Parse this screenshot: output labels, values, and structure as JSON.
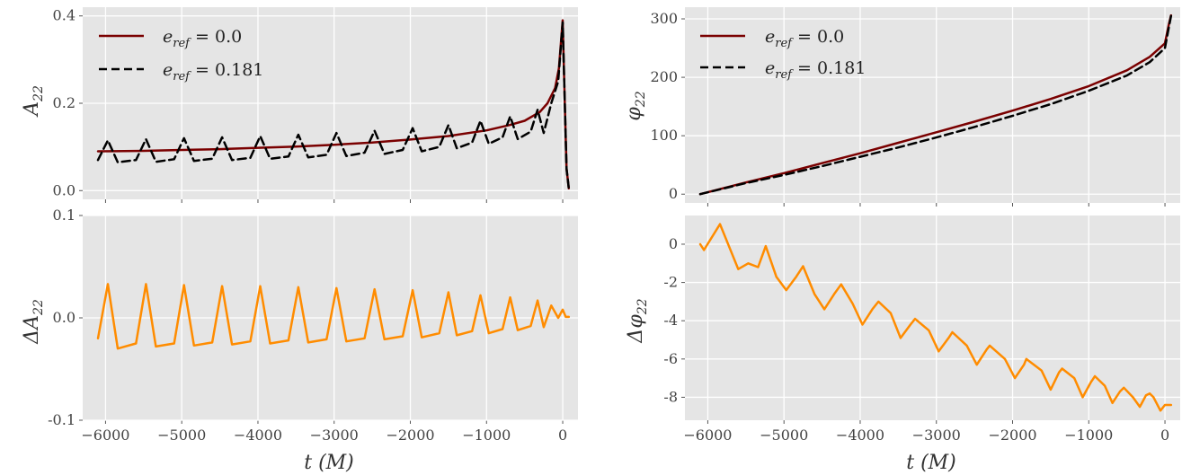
{
  "chart_data": [
    {
      "type": "line",
      "panel": "top-left",
      "ylabel": "A22",
      "xlim": [
        -6300,
        200
      ],
      "ylim": [
        -0.02,
        0.42
      ],
      "xticks": [
        -6000,
        -5000,
        -4000,
        -3000,
        -2000,
        -1000,
        0
      ],
      "xtick_labels": [
        "−6000",
        "−5000",
        "−4000",
        "−3000",
        "−2000",
        "−1000",
        "0"
      ],
      "show_xtick_labels": false,
      "yticks": [
        0.0,
        0.2,
        0.4
      ],
      "ytick_labels": [
        "0.0",
        "0.2",
        "0.4"
      ],
      "grid": true,
      "legend": "top-left",
      "series": [
        {
          "name": "e_ref = 0.0",
          "color": "#7a0000",
          "dash": "solid",
          "x": [
            -6100,
            -5500,
            -5000,
            -4500,
            -4000,
            -3500,
            -3000,
            -2500,
            -2000,
            -1500,
            -1000,
            -700,
            -500,
            -300,
            -200,
            -100,
            -50,
            0,
            20,
            50,
            80
          ],
          "y": [
            0.09,
            0.091,
            0.093,
            0.095,
            0.098,
            0.101,
            0.105,
            0.11,
            0.117,
            0.125,
            0.138,
            0.15,
            0.16,
            0.18,
            0.2,
            0.235,
            0.28,
            0.39,
            0.25,
            0.05,
            0.005
          ]
        },
        {
          "name": "e_ref = 0.181",
          "color": "#000000",
          "dash": "dashed",
          "x": [
            -6100,
            -5970,
            -5840,
            -5600,
            -5470,
            -5340,
            -5100,
            -4970,
            -4840,
            -4600,
            -4470,
            -4340,
            -4100,
            -3970,
            -3840,
            -3600,
            -3470,
            -3340,
            -3100,
            -2970,
            -2840,
            -2600,
            -2470,
            -2340,
            -2100,
            -1970,
            -1850,
            -1620,
            -1500,
            -1390,
            -1190,
            -1080,
            -970,
            -790,
            -690,
            -590,
            -420,
            -330,
            -250,
            -150,
            -60,
            0,
            20,
            50,
            80
          ],
          "y": [
            0.07,
            0.115,
            0.065,
            0.07,
            0.118,
            0.066,
            0.072,
            0.12,
            0.068,
            0.073,
            0.122,
            0.07,
            0.075,
            0.125,
            0.073,
            0.078,
            0.128,
            0.076,
            0.082,
            0.132,
            0.079,
            0.087,
            0.137,
            0.084,
            0.093,
            0.143,
            0.09,
            0.1,
            0.15,
            0.097,
            0.11,
            0.16,
            0.107,
            0.122,
            0.17,
            0.118,
            0.135,
            0.185,
            0.132,
            0.2,
            0.25,
            0.385,
            0.25,
            0.05,
            0.005
          ]
        }
      ]
    },
    {
      "type": "line",
      "panel": "top-right",
      "ylabel": "φ22",
      "xlim": [
        -6300,
        200
      ],
      "ylim": [
        -15,
        320
      ],
      "xticks": [
        -6000,
        -5000,
        -4000,
        -3000,
        -2000,
        -1000,
        0
      ],
      "xtick_labels": [
        "−6000",
        "−5000",
        "−4000",
        "−3000",
        "−2000",
        "−1000",
        "0"
      ],
      "show_xtick_labels": false,
      "yticks": [
        0,
        100,
        200,
        300
      ],
      "ytick_labels": [
        "0",
        "100",
        "200",
        "300"
      ],
      "grid": true,
      "legend": "top-left",
      "series": [
        {
          "name": "e_ref = 0.0",
          "color": "#7a0000",
          "dash": "solid",
          "x": [
            -6100,
            -5500,
            -5000,
            -4500,
            -4000,
            -3500,
            -3000,
            -2500,
            -2000,
            -1500,
            -1000,
            -500,
            -200,
            0,
            50,
            80
          ],
          "y": [
            0,
            20,
            36,
            53,
            70,
            88,
            106,
            124,
            143,
            163,
            185,
            212,
            235,
            258,
            290,
            306
          ]
        },
        {
          "name": "e_ref = 0.181",
          "color": "#000000",
          "dash": "dashed",
          "x": [
            -6100,
            -5500,
            -5000,
            -4500,
            -4000,
            -3500,
            -3000,
            -2500,
            -2000,
            -1500,
            -1000,
            -500,
            -200,
            0,
            50,
            80
          ],
          "y": [
            0,
            19,
            33,
            48,
            64,
            80,
            97,
            115,
            134,
            154,
            177,
            203,
            226,
            250,
            285,
            305
          ]
        }
      ]
    },
    {
      "type": "line",
      "panel": "bottom-left",
      "xlabel": "t (M)",
      "ylabel": "ΔA22",
      "xlim": [
        -6300,
        200
      ],
      "ylim": [
        -0.1,
        0.1
      ],
      "xticks": [
        -6000,
        -5000,
        -4000,
        -3000,
        -2000,
        -1000,
        0
      ],
      "xtick_labels": [
        "−6000",
        "−5000",
        "−4000",
        "−3000",
        "−2000",
        "−1000",
        "0"
      ],
      "show_xtick_labels": true,
      "yticks": [
        -0.1,
        0.0,
        0.1
      ],
      "ytick_labels": [
        "-0.1",
        "0.0",
        "0.1"
      ],
      "grid": true,
      "series": [
        {
          "color": "#ff8c00",
          "dash": "solid",
          "x": [
            -6100,
            -5970,
            -5840,
            -5600,
            -5470,
            -5340,
            -5100,
            -4970,
            -4840,
            -4600,
            -4470,
            -4340,
            -4100,
            -3970,
            -3840,
            -3600,
            -3470,
            -3340,
            -3100,
            -2970,
            -2840,
            -2600,
            -2470,
            -2340,
            -2100,
            -1970,
            -1850,
            -1620,
            -1500,
            -1390,
            -1190,
            -1080,
            -970,
            -790,
            -690,
            -590,
            -420,
            -330,
            -250,
            -150,
            -60,
            0,
            40,
            80
          ],
          "y": [
            -0.02,
            0.033,
            -0.03,
            -0.025,
            0.033,
            -0.028,
            -0.025,
            0.032,
            -0.027,
            -0.024,
            0.031,
            -0.026,
            -0.023,
            0.031,
            -0.025,
            -0.022,
            0.03,
            -0.024,
            -0.021,
            0.029,
            -0.023,
            -0.02,
            0.028,
            -0.021,
            -0.018,
            0.027,
            -0.019,
            -0.015,
            0.025,
            -0.017,
            -0.013,
            0.022,
            -0.015,
            -0.011,
            0.02,
            -0.012,
            -0.008,
            0.017,
            -0.009,
            0.012,
            0.0,
            0.008,
            0.001,
            0.001
          ]
        }
      ]
    },
    {
      "type": "line",
      "panel": "bottom-right",
      "xlabel": "t (M)",
      "ylabel": "Δφ22",
      "xlim": [
        -6300,
        200
      ],
      "ylim": [
        -9.2,
        1.5
      ],
      "xticks": [
        -6000,
        -5000,
        -4000,
        -3000,
        -2000,
        -1000,
        0
      ],
      "xtick_labels": [
        "−6000",
        "−5000",
        "−4000",
        "−3000",
        "−2000",
        "−1000",
        "0"
      ],
      "show_xtick_labels": true,
      "yticks": [
        0,
        -2,
        -4,
        -6,
        -8
      ],
      "ytick_labels": [
        "0",
        "-2",
        "-4",
        "-6",
        "-8"
      ],
      "grid": true,
      "series": [
        {
          "color": "#ff8c00",
          "dash": "solid",
          "x": [
            -6100,
            -6050,
            -5840,
            -5600,
            -5470,
            -5340,
            -5240,
            -5100,
            -4970,
            -4840,
            -4750,
            -4600,
            -4470,
            -4340,
            -4250,
            -4100,
            -3970,
            -3840,
            -3760,
            -3600,
            -3470,
            -3340,
            -3280,
            -3100,
            -2970,
            -2840,
            -2790,
            -2600,
            -2470,
            -2340,
            -2300,
            -2100,
            -1970,
            -1850,
            -1820,
            -1620,
            -1500,
            -1390,
            -1350,
            -1190,
            -1080,
            -970,
            -920,
            -790,
            -690,
            -590,
            -540,
            -420,
            -330,
            -250,
            -200,
            -150,
            -60,
            0,
            40,
            80
          ],
          "y": [
            0.0,
            -0.3,
            1.05,
            -1.3,
            -1.0,
            -1.2,
            -0.1,
            -1.7,
            -2.4,
            -1.7,
            -1.15,
            -2.6,
            -3.4,
            -2.6,
            -2.1,
            -3.1,
            -4.2,
            -3.4,
            -3.0,
            -3.6,
            -4.9,
            -4.2,
            -3.9,
            -4.5,
            -5.6,
            -4.9,
            -4.6,
            -5.3,
            -6.3,
            -5.5,
            -5.3,
            -6.0,
            -7.0,
            -6.3,
            -6.0,
            -6.6,
            -7.6,
            -6.7,
            -6.5,
            -7.0,
            -8.0,
            -7.2,
            -6.9,
            -7.4,
            -8.3,
            -7.7,
            -7.5,
            -8.0,
            -8.5,
            -7.9,
            -7.8,
            -8.0,
            -8.7,
            -8.4,
            -8.4,
            -8.4
          ]
        }
      ]
    }
  ],
  "legend": {
    "items": [
      {
        "label_base": "e",
        "label_sub": "ref",
        "label_value": " = 0.0",
        "color": "#7a0000",
        "dash": "solid"
      },
      {
        "label_base": "e",
        "label_sub": "ref",
        "label_value": " = 0.181",
        "color": "#000000",
        "dash": "dashed"
      }
    ]
  },
  "axis_labels": {
    "a22_base": "A",
    "a22_sub": "22",
    "phi22_base": "φ",
    "phi22_sub": "22",
    "delta_a22_base": "ΔA",
    "delta_a22_sub": "22",
    "delta_phi22_base": "Δφ",
    "delta_phi22_sub": "22",
    "t_label": "t (M)"
  }
}
